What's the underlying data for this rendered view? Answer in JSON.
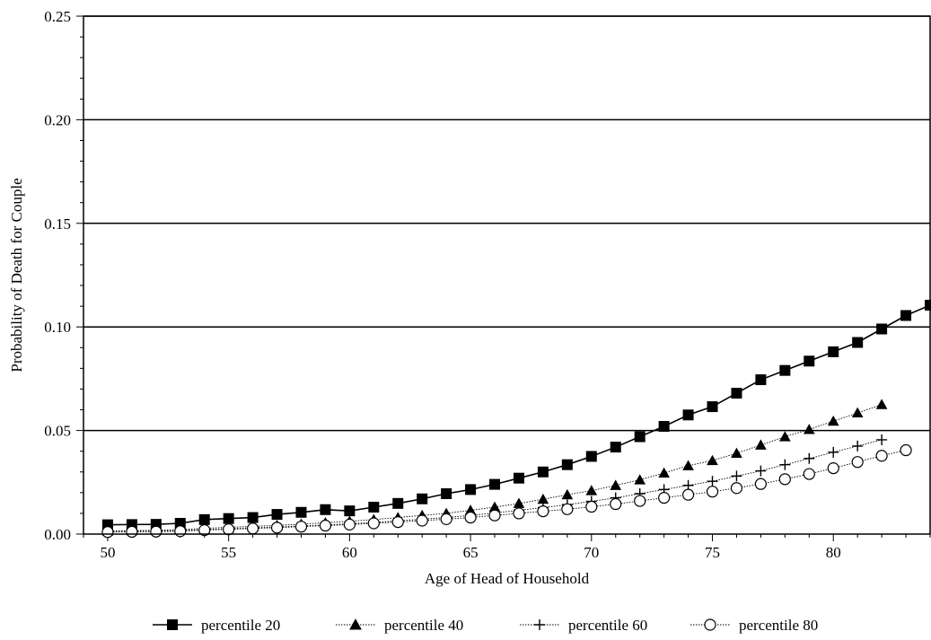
{
  "chart_data": {
    "type": "line",
    "title": "",
    "xlabel": "Age of Head of Household",
    "ylabel": "Probability of Death for Couple",
    "xlim": [
      49,
      84
    ],
    "ylim": [
      0,
      0.25
    ],
    "x_ticks": [
      50,
      55,
      60,
      65,
      70,
      75,
      80
    ],
    "x_tick_labels": [
      "50",
      "55",
      "60",
      "65",
      "70",
      "75",
      "80"
    ],
    "y_ticks": [
      0,
      0.05,
      0.1,
      0.15,
      0.2,
      0.25
    ],
    "y_tick_labels": [
      "0.00",
      "0.05",
      "0.10",
      "0.15",
      "0.20",
      "0.25"
    ],
    "grid": "horizontal",
    "legend_position": "bottom",
    "series": [
      {
        "name": "percentile 20",
        "marker": "square",
        "line_style": "solid",
        "x": [
          50,
          51,
          52,
          53,
          54,
          55,
          56,
          57,
          58,
          59,
          60,
          61,
          62,
          63,
          64,
          65,
          66,
          67,
          68,
          69,
          70,
          71,
          72,
          73,
          74,
          75,
          76,
          77,
          78,
          79,
          80,
          81,
          82,
          83,
          84
        ],
        "values": [
          0.0045,
          0.0046,
          0.0047,
          0.0052,
          0.007,
          0.0075,
          0.008,
          0.0095,
          0.0105,
          0.0118,
          0.0112,
          0.013,
          0.0148,
          0.017,
          0.0195,
          0.0215,
          0.024,
          0.027,
          0.03,
          0.0335,
          0.0375,
          0.042,
          0.047,
          0.052,
          0.0575,
          0.0615,
          0.068,
          0.0745,
          0.079,
          0.0835,
          0.088,
          0.0925,
          0.099,
          0.1055,
          0.1105
        ]
      },
      {
        "name": "percentile 40",
        "marker": "triangle",
        "line_style": "dotted",
        "x": [
          50,
          51,
          52,
          53,
          54,
          55,
          56,
          57,
          58,
          59,
          60,
          61,
          62,
          63,
          64,
          65,
          66,
          67,
          68,
          69,
          70,
          71,
          72,
          73,
          74,
          75,
          76,
          77,
          78,
          79,
          80,
          81,
          82
        ],
        "values": [
          0.0015,
          0.0017,
          0.0018,
          0.0022,
          0.0028,
          0.0033,
          0.0037,
          0.0042,
          0.0048,
          0.0055,
          0.0062,
          0.007,
          0.008,
          0.009,
          0.01,
          0.0115,
          0.013,
          0.0148,
          0.0168,
          0.019,
          0.021,
          0.0235,
          0.0262,
          0.0295,
          0.033,
          0.0355,
          0.039,
          0.043,
          0.047,
          0.0505,
          0.0545,
          0.0585,
          0.0625
        ]
      },
      {
        "name": "percentile 60",
        "marker": "plus",
        "line_style": "dotted",
        "x": [
          50,
          51,
          52,
          53,
          54,
          55,
          56,
          57,
          58,
          59,
          60,
          61,
          62,
          63,
          64,
          65,
          66,
          67,
          68,
          69,
          70,
          71,
          72,
          73,
          74,
          75,
          76,
          77,
          78,
          79,
          80,
          81,
          82
        ],
        "values": [
          0.0012,
          0.0013,
          0.0014,
          0.0017,
          0.0022,
          0.0026,
          0.003,
          0.0034,
          0.0039,
          0.0044,
          0.005,
          0.0056,
          0.0064,
          0.0072,
          0.008,
          0.009,
          0.0102,
          0.0115,
          0.0128,
          0.0142,
          0.0158,
          0.0175,
          0.0195,
          0.0215,
          0.0235,
          0.0255,
          0.028,
          0.0305,
          0.0335,
          0.0365,
          0.0395,
          0.0425,
          0.0455
        ]
      },
      {
        "name": "percentile 80",
        "marker": "circle",
        "line_style": "dotted",
        "x": [
          50,
          51,
          52,
          53,
          54,
          55,
          56,
          57,
          58,
          59,
          60,
          61,
          62,
          63,
          64,
          65,
          66,
          67,
          68,
          69,
          70,
          71,
          72,
          73,
          74,
          75,
          76,
          77,
          78,
          79,
          80,
          81,
          82,
          83
        ],
        "values": [
          0.001,
          0.0011,
          0.0012,
          0.0014,
          0.0019,
          0.0023,
          0.0027,
          0.0031,
          0.0036,
          0.0041,
          0.0046,
          0.0052,
          0.0058,
          0.0065,
          0.0072,
          0.008,
          0.009,
          0.01,
          0.011,
          0.012,
          0.0132,
          0.0145,
          0.016,
          0.0175,
          0.019,
          0.0205,
          0.0222,
          0.0242,
          0.0265,
          0.029,
          0.0318,
          0.0348,
          0.0378,
          0.0405
        ]
      }
    ]
  }
}
